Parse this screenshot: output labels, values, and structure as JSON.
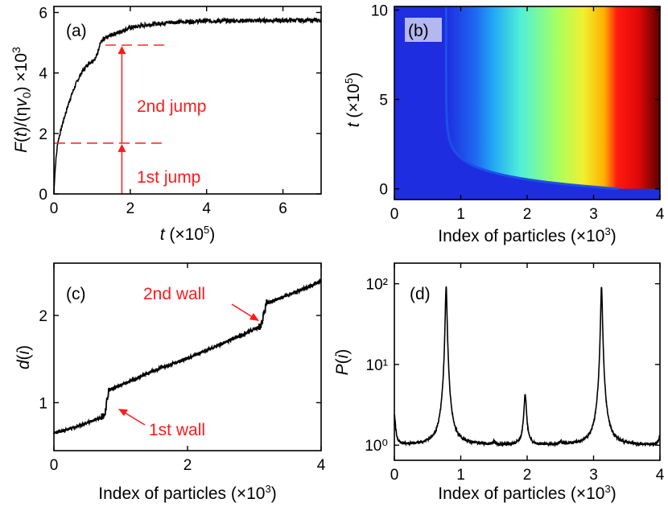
{
  "chart_data": [
    {
      "panel": "(a)",
      "type": "line",
      "xlabel": "t (×10⁵)",
      "ylabel": "F(t)/(ηv₀) ×10³",
      "xlim": [
        0,
        7
      ],
      "ylim": [
        0,
        6.2
      ],
      "xticks": [
        0,
        2,
        4,
        6
      ],
      "yticks": [
        0,
        2,
        4,
        6
      ],
      "series": [
        {
          "name": "F(t)",
          "x": [
            0,
            0.02,
            0.05,
            0.1,
            0.2,
            0.3,
            0.4,
            0.5,
            0.6,
            0.7,
            0.8,
            0.9,
            1.0,
            1.1,
            1.15,
            1.2,
            1.25,
            1.3,
            1.5,
            1.8,
            2.0,
            2.5,
            3.0,
            3.5,
            4.0,
            5.0,
            6.0,
            7.0
          ],
          "y": [
            0.0,
            0.6,
            1.1,
            1.7,
            2.2,
            2.65,
            3.05,
            3.4,
            3.7,
            3.95,
            4.15,
            4.3,
            4.4,
            4.5,
            4.7,
            4.95,
            5.05,
            5.1,
            5.25,
            5.4,
            5.5,
            5.6,
            5.67,
            5.7,
            5.72,
            5.73,
            5.74,
            5.74
          ]
        }
      ],
      "reference_lines": [
        {
          "label": "1st jump level",
          "y": 1.68
        },
        {
          "label": "2nd jump level",
          "y": 4.92
        }
      ],
      "annotations": [
        {
          "text": "2nd jump"
        },
        {
          "text": "1st jump"
        }
      ]
    },
    {
      "panel": "(b)",
      "type": "heatmap",
      "xlabel": "Index of particles (×10³)",
      "ylabel": "t (×10⁵)",
      "xlim": [
        0,
        4
      ],
      "ylim": [
        -0.6,
        10.2
      ],
      "xticks": [
        0,
        1,
        2,
        3,
        4
      ],
      "yticks": [
        0,
        5,
        10
      ],
      "colormap": [
        "#1e2de0",
        "#1ea0f5",
        "#60ffd0",
        "#c8ff40",
        "#ffd400",
        "#ff1010",
        "#5a0000"
      ],
      "walls": [
        {
          "name": "1st wall",
          "final_index": 0.78
        },
        {
          "name": "2nd wall",
          "final_index": 3.12
        }
      ]
    },
    {
      "panel": "(c)",
      "type": "line",
      "xlabel": "Index of particles (×10³)",
      "ylabel": "d(i)",
      "xlim": [
        0,
        4
      ],
      "ylim": [
        0.45,
        2.6
      ],
      "xticks": [
        0,
        2,
        4
      ],
      "yticks": [
        1,
        2
      ],
      "series": [
        {
          "name": "d(i)",
          "x": [
            0,
            0.2,
            0.4,
            0.6,
            0.76,
            0.82,
            1.0,
            1.5,
            2.0,
            2.5,
            3.0,
            3.1,
            3.18,
            3.5,
            4.0
          ],
          "y": [
            0.65,
            0.69,
            0.74,
            0.8,
            0.86,
            1.14,
            1.2,
            1.37,
            1.51,
            1.67,
            1.84,
            1.88,
            2.14,
            2.23,
            2.39
          ]
        }
      ],
      "annotations": [
        {
          "text": "2nd wall"
        },
        {
          "text": "1st wall"
        }
      ]
    },
    {
      "panel": "(d)",
      "type": "line",
      "scale": "log-y",
      "xlabel": "Index of particles (×10³)",
      "ylabel": "P(i)",
      "xlim": [
        0,
        4
      ],
      "ylim": [
        0.65,
        180
      ],
      "xticks": [
        0,
        1,
        2,
        3,
        4
      ],
      "yticks": [
        1,
        10,
        100
      ],
      "ytick_labels": [
        "10⁰",
        "10¹",
        "10²"
      ],
      "series": [
        {
          "name": "P(i)",
          "peaks": [
            {
              "x": 0.0,
              "y": 2.3
            },
            {
              "x": 0.78,
              "y": 92
            },
            {
              "x": 1.5,
              "y": 1.08
            },
            {
              "x": 1.97,
              "y": 4.2
            },
            {
              "x": 2.5,
              "y": 1.08
            },
            {
              "x": 3.12,
              "y": 92
            },
            {
              "x": 4.0,
              "y": 1.3
            }
          ],
          "baseline": 1.0
        }
      ]
    }
  ]
}
